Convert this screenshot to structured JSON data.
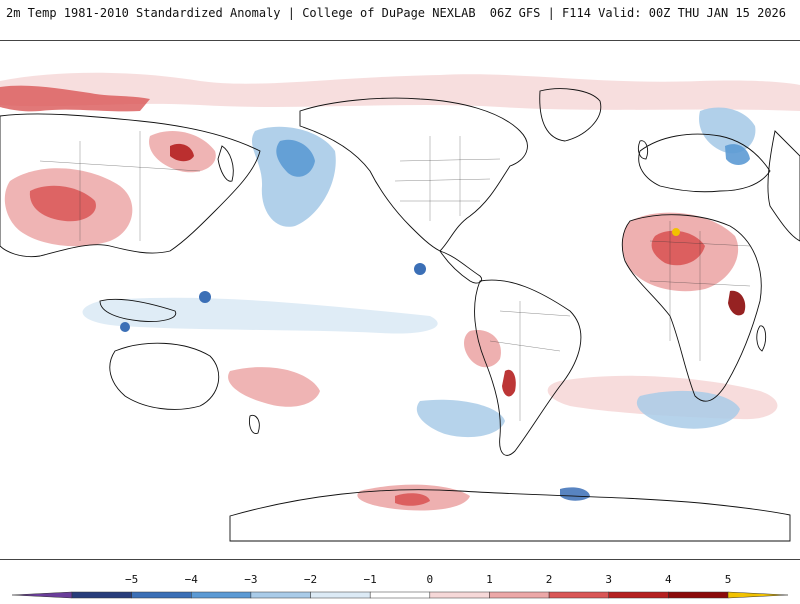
{
  "header": {
    "title_left": "2m Temp 1981-2010 Standardized Anomaly | College of DuPage NEXLAB",
    "title_right": "06Z GFS | F114 Valid: 00Z THU JAN 15 2026"
  },
  "map": {
    "land_outline_color": "#111111",
    "ocean_color": "#ffffff"
  },
  "colorbar": {
    "tick_labels": [
      "−5",
      "−4",
      "−3",
      "−2",
      "−1",
      "0",
      "1",
      "2",
      "3",
      "4",
      "5"
    ],
    "colors": [
      "#6a3d9a",
      "#283c7a",
      "#3b6fb6",
      "#5c9ad4",
      "#a9cbe8",
      "#dceaf5",
      "#ffffff",
      "#f6d8d8",
      "#eca7a7",
      "#d95656",
      "#b52020",
      "#8b0a0a",
      "#f2c200"
    ]
  }
}
